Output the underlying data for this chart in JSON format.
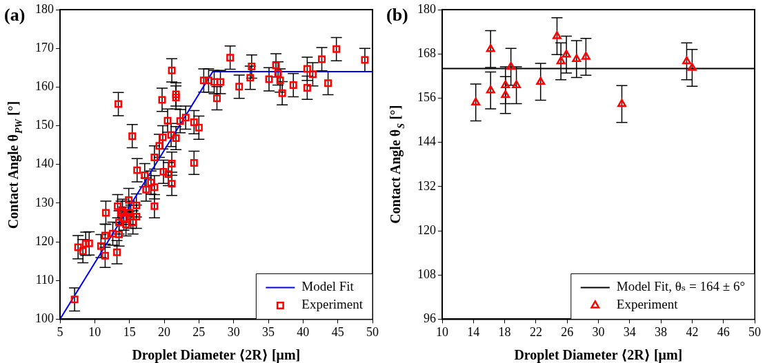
{
  "chart_data": [
    {
      "type": "scatter",
      "title": "(a)",
      "xlabel": "Droplet Diameter ⟨2R⟩ [μm]",
      "ylabel": "Contact Angle θ$_{PW}$ [°]",
      "xlim": [
        5,
        50
      ],
      "xticks": [
        5,
        10,
        15,
        20,
        25,
        30,
        35,
        40,
        45,
        50
      ],
      "ylim": [
        100,
        180
      ],
      "yticks": [
        100,
        110,
        120,
        130,
        140,
        150,
        160,
        170,
        180
      ],
      "legend": "bottom right",
      "series": [
        {
          "name": "Model Fit",
          "type": "line",
          "color": "#0000ff",
          "line_style": "solid",
          "x": [
            5,
            27,
            50
          ],
          "values": [
            100,
            164,
            164
          ]
        },
        {
          "name": "Experiment",
          "type": "scatter",
          "color": "#ff0000",
          "marker": "square",
          "x": [
            7.1,
            7.6,
            8.3,
            8.7,
            9.2,
            10.9,
            11.5,
            11.5,
            11.6,
            12.6,
            13.2,
            13.5,
            13.3,
            13.5,
            13.8,
            14.2,
            14.5,
            14.9,
            15.2,
            15.5,
            16.0,
            16.0,
            14.0,
            15.0,
            16.1,
            17.2,
            17.4,
            18.1,
            18.6,
            18.6,
            18.6,
            19.3,
            19.8,
            19.9,
            20.6,
            21.1,
            21.1,
            21.0,
            21.7,
            19.7,
            20.5,
            21.7,
            21.7,
            21.1,
            22.3,
            23.1,
            24.3,
            25.0,
            24.3,
            13.4,
            15.4,
            25.7,
            26.4,
            27.2,
            28.1,
            27.6,
            29.5,
            30.8,
            32.4,
            32.6,
            35.1,
            36.1,
            36.4,
            36.7,
            37.0,
            38.6,
            40.6,
            41.4,
            40.6,
            42.7,
            43.6,
            44.8,
            48.9
          ],
          "values": [
            105.1,
            118.6,
            117.6,
            119.5,
            119.6,
            118.9,
            121.6,
            116.4,
            127.5,
            122.1,
            117.3,
            121.9,
            129.2,
            125,
            127.5,
            126,
            124.5,
            130.8,
            126.5,
            125,
            129.4,
            126.5,
            128,
            127.5,
            138.5,
            137.2,
            133.5,
            135.3,
            134.1,
            129.2,
            141.8,
            144.8,
            147,
            138.1,
            137.5,
            135,
            140.2,
            147.6,
            146.8,
            156.7,
            151.3,
            158.1,
            157.3,
            164.3,
            151.2,
            152.1,
            150.9,
            149.5,
            140.4,
            155.6,
            147.3,
            161.7,
            161.7,
            161.3,
            161.3,
            157.1,
            167.6,
            160.1,
            162.4,
            165.3,
            162,
            165.6,
            163.5,
            161.7,
            158.4,
            160.5,
            164.7,
            163.3,
            159.8,
            167.2,
            161,
            169.8,
            167
          ],
          "errors": [
            3,
            3,
            3,
            3,
            3,
            3,
            3,
            3,
            3,
            3,
            3,
            3,
            3,
            3,
            3,
            3,
            3,
            3,
            3,
            3,
            3,
            3,
            3,
            3,
            3,
            3,
            3,
            3,
            3,
            3,
            3,
            3,
            3,
            3,
            3,
            3,
            3,
            3,
            3,
            3,
            3,
            3,
            3,
            3,
            3,
            3,
            3,
            3,
            3,
            3,
            3,
            3,
            3,
            3,
            3,
            3,
            3,
            3,
            3,
            3,
            3,
            3,
            3,
            3,
            3,
            3,
            3,
            3,
            3,
            3,
            3,
            3,
            3
          ]
        }
      ]
    },
    {
      "type": "scatter",
      "title": "(b)",
      "xlabel": "Droplet Diameter ⟨2R⟩ [μm]",
      "ylabel": "Contact Angle θ$_{S}$ [°]",
      "xlim": [
        10,
        50
      ],
      "xticks": [
        10,
        14,
        18,
        22,
        26,
        30,
        34,
        38,
        42,
        46,
        50
      ],
      "ylim": [
        96,
        180
      ],
      "yticks": [
        96,
        108,
        120,
        132,
        144,
        156,
        168,
        180
      ],
      "legend": "bottom right",
      "series": [
        {
          "name": "Model Fit, θₛ = 164 ± 6°",
          "type": "line",
          "color": "#000000",
          "line_style": "solid",
          "x": [
            10,
            50
          ],
          "values": [
            164,
            164
          ]
        },
        {
          "name": "Experiment",
          "type": "scatter",
          "color": "#ff0000",
          "marker": "triangle",
          "x": [
            14.3,
            16.2,
            16.2,
            18.1,
            18.1,
            18.8,
            19.5,
            22.6,
            24.7,
            25.2,
            25.9,
            27.2,
            28.4,
            33.0,
            41.3,
            42.0
          ],
          "values": [
            154.8,
            169.3,
            158.1,
            159.5,
            156.8,
            164.5,
            159.5,
            160.4,
            172.8,
            166.0,
            167.8,
            166.6,
            167.2,
            154.4,
            166.0,
            164.2
          ],
          "errors": [
            5,
            5,
            5,
            5,
            5,
            5,
            5,
            5,
            5,
            5,
            5,
            5,
            5,
            5,
            5,
            5
          ]
        }
      ]
    }
  ]
}
